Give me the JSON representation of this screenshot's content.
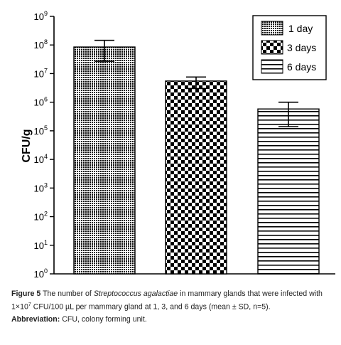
{
  "chart_data": {
    "type": "bar",
    "categories": [
      "1 day",
      "3 days",
      "6 days"
    ],
    "values": [
      85000000,
      5500000,
      580000
    ],
    "error": [
      {
        "low": 27000000,
        "high": 145000000
      },
      {
        "low": 3000000,
        "high": 7600000
      },
      {
        "low": 140000,
        "high": 1000000
      }
    ],
    "yscale": "log",
    "ylim": [
      1,
      1000000000
    ],
    "ylabel": "CFU/g",
    "xlabel": "",
    "y_ticks": [
      {
        "base": "10",
        "exp": "0",
        "value": 1
      },
      {
        "base": "10",
        "exp": "1",
        "value": 10
      },
      {
        "base": "10",
        "exp": "2",
        "value": 100
      },
      {
        "base": "10",
        "exp": "3",
        "value": 1000
      },
      {
        "base": "10",
        "exp": "4",
        "value": 10000
      },
      {
        "base": "10",
        "exp": "5",
        "value": 100000
      },
      {
        "base": "10",
        "exp": "6",
        "value": 1000000
      },
      {
        "base": "10",
        "exp": "7",
        "value": 10000000
      },
      {
        "base": "10",
        "exp": "8",
        "value": 100000000
      },
      {
        "base": "10",
        "exp": "9",
        "value": 1000000000
      }
    ],
    "legend": {
      "placement": "top-right",
      "entries": [
        "1 day",
        "3 days",
        "6 days"
      ]
    },
    "patterns": [
      "dense-dots",
      "checkerboard",
      "horizontal-stripes"
    ],
    "colors": {
      "ink": "#000000",
      "fill": "#ffffff"
    }
  },
  "caption": {
    "figure_label": "Figure 5",
    "text_before_species": "The number of ",
    "species": "Streptococcus agalactiae",
    "text_after_species": " in mammary glands that were infected with 1×10",
    "dose_exp": "7",
    "text_after_dose": " CFU/100 µL per mammary gland at 1, 3, and 6 days (mean ± SD, n=5).",
    "abbrev_label": "Abbreviation:",
    "abbrev_text": " CFU, colony forming unit."
  }
}
